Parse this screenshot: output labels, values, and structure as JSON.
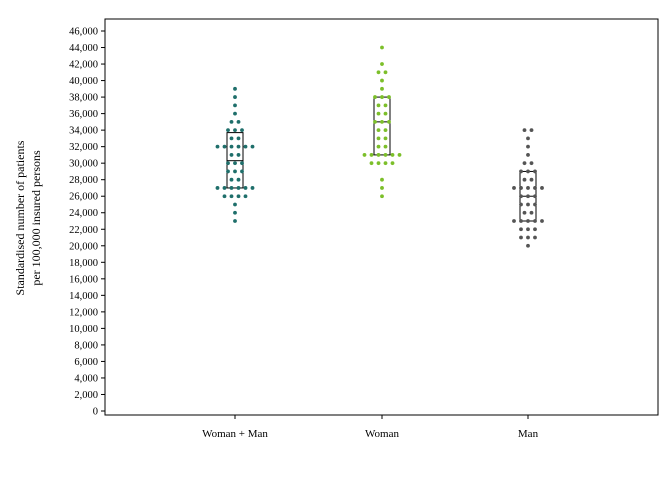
{
  "chart_data": {
    "type": "scatter",
    "subtype": "dot-strip with median and interquartile box",
    "title": "",
    "xlabel": "",
    "ylabel_lines": [
      "Standardised number of patients",
      "per 100,000 insured persons"
    ],
    "ylim": [
      0,
      46000
    ],
    "yticks": [
      0,
      2000,
      4000,
      6000,
      8000,
      10000,
      12000,
      14000,
      16000,
      18000,
      20000,
      22000,
      24000,
      26000,
      28000,
      30000,
      32000,
      34000,
      36000,
      38000,
      40000,
      42000,
      44000,
      46000
    ],
    "ytick_labels": [
      "0",
      "2,000",
      "4,000",
      "6,000",
      "8,000",
      "10,000",
      "12,000",
      "14,000",
      "16,000",
      "18,000",
      "20,000",
      "22,000",
      "24,000",
      "26,000",
      "28,000",
      "30,000",
      "32,000",
      "34,000",
      "36,000",
      "38,000",
      "40,000",
      "42,000",
      "44,000",
      "46,000"
    ],
    "grid": false,
    "legend": "none",
    "categories": [
      "Woman + Man",
      "Woman",
      "Man"
    ],
    "series": [
      {
        "category": "Woman + Man",
        "color": "#1f6f6b",
        "q1": 27000,
        "median": 30300,
        "q3": 33700,
        "points": [
          23000,
          24000,
          25000,
          26000,
          26000,
          26000,
          26000,
          27000,
          27000,
          27000,
          27000,
          27000,
          27000,
          28000,
          28000,
          29000,
          29000,
          29000,
          30000,
          30000,
          30000,
          31000,
          31000,
          32000,
          32000,
          32000,
          32000,
          32000,
          32000,
          33000,
          33000,
          34000,
          34000,
          34000,
          35000,
          35000,
          36000,
          37000,
          38000,
          39000
        ]
      },
      {
        "category": "Woman",
        "color": "#7cbf2a",
        "q1": 31000,
        "median": 35000,
        "q3": 38000,
        "points": [
          26000,
          27000,
          28000,
          30000,
          30000,
          30000,
          30000,
          31000,
          31000,
          31000,
          31000,
          31000,
          31000,
          32000,
          32000,
          33000,
          33000,
          34000,
          34000,
          35000,
          35000,
          35000,
          36000,
          36000,
          37000,
          37000,
          38000,
          38000,
          38000,
          39000,
          40000,
          41000,
          41000,
          42000,
          44000
        ]
      },
      {
        "category": "Man",
        "color": "#555555",
        "q1": 23000,
        "median": 26000,
        "q3": 29000,
        "points": [
          20000,
          21000,
          21000,
          21000,
          22000,
          22000,
          22000,
          23000,
          23000,
          23000,
          23000,
          23000,
          24000,
          24000,
          25000,
          25000,
          25000,
          26000,
          26000,
          26000,
          27000,
          27000,
          27000,
          27000,
          27000,
          28000,
          28000,
          29000,
          29000,
          29000,
          30000,
          30000,
          31000,
          32000,
          33000,
          34000,
          34000
        ]
      }
    ]
  }
}
